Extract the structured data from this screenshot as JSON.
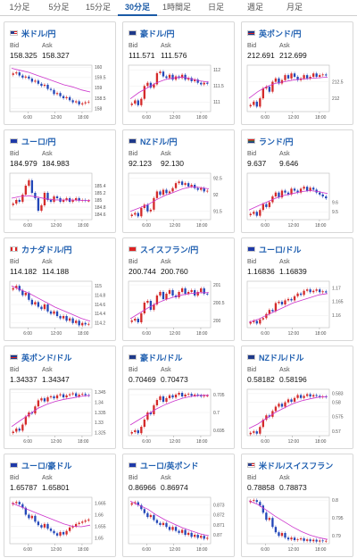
{
  "tabs": [
    {
      "label": "1分足",
      "active": false
    },
    {
      "label": "5分足",
      "active": false
    },
    {
      "label": "15分足",
      "active": false
    },
    {
      "label": "30分足",
      "active": true
    },
    {
      "label": "1時間足",
      "active": false
    },
    {
      "label": "日足",
      "active": false
    },
    {
      "label": "週足",
      "active": false
    },
    {
      "label": "月足",
      "active": false
    }
  ],
  "labels": {
    "bid": "Bid",
    "ask": "Ask"
  },
  "x_ticks": [
    "6:00",
    "12:00",
    "18:00"
  ],
  "colors": {
    "up": "#d42a2a",
    "down": "#2347b8",
    "ma_pink": "#cc33cc",
    "ma_blue": "#1f3aa8",
    "title": "#1f5fb0"
  },
  "cards": [
    {
      "title": "米ドル/円",
      "flag": "us",
      "bid": "158.325",
      "ask": "158.327",
      "chart_data": {
        "type": "candlestick",
        "ylim": [
          157.85,
          160.1
        ],
        "y_ticks": [
          "160",
          "159.5",
          "159",
          "158.5",
          "158"
        ],
        "close": [
          159.7,
          159.75,
          159.6,
          159.5,
          159.55,
          159.45,
          159.3,
          159.35,
          159.2,
          159.1,
          159.15,
          158.95,
          158.9,
          158.7,
          158.75,
          158.6,
          158.5,
          158.55,
          158.4,
          158.3,
          158.35,
          158.2,
          158.25,
          158.3,
          158.33
        ],
        "ma": [
          159.95,
          159.85,
          159.75,
          159.6,
          159.45,
          159.3,
          159.15,
          159.05,
          158.9,
          158.8
        ]
      }
    },
    {
      "title": "豪ドル/円",
      "flag": "au",
      "bid": "111.571",
      "ask": "111.576",
      "chart_data": {
        "type": "candlestick",
        "ylim": [
          110.7,
          112.15
        ],
        "y_ticks": [
          "112",
          "111.5",
          "111"
        ],
        "close": [
          110.95,
          111.05,
          110.9,
          111.1,
          111.5,
          111.6,
          111.45,
          111.55,
          111.9,
          111.95,
          111.8,
          111.75,
          111.85,
          111.7,
          111.8,
          111.75,
          111.85,
          111.7,
          111.75,
          111.65,
          111.7,
          111.6,
          111.55,
          111.6,
          111.57
        ],
        "ma": [
          111.1,
          111.3,
          111.45,
          111.6,
          111.7,
          111.75,
          111.78,
          111.72,
          111.66,
          111.62
        ]
      }
    },
    {
      "title": "英ポンド/円",
      "flag": "gb",
      "bid": "212.691",
      "ask": "212.699",
      "chart_data": {
        "type": "candlestick",
        "ylim": [
          211.6,
          213.0
        ],
        "y_ticks": [
          "212.5",
          "212"
        ],
        "close": [
          211.8,
          211.9,
          211.75,
          212.0,
          212.3,
          212.35,
          212.2,
          212.5,
          212.6,
          212.45,
          212.55,
          212.7,
          212.6,
          212.75,
          212.65,
          212.55,
          212.6,
          212.7,
          212.6,
          212.65,
          212.75,
          212.65,
          212.7,
          212.72,
          212.69
        ],
        "ma": [
          212.0,
          212.2,
          212.35,
          212.45,
          212.5,
          212.55,
          212.58,
          212.6,
          212.62,
          212.64
        ]
      }
    },
    {
      "title": "ユーロ/円",
      "flag": "eu",
      "bid": "184.979",
      "ask": "184.983",
      "chart_data": {
        "type": "candlestick",
        "ylim": [
          184.45,
          185.75
        ],
        "y_ticks": [
          "185.4",
          "185.2",
          "185",
          "184.8",
          "184.6"
        ],
        "close": [
          184.9,
          185.0,
          184.95,
          185.15,
          185.4,
          185.55,
          185.2,
          185.05,
          184.7,
          184.85,
          185.2,
          185.0,
          184.95,
          185.1,
          185.05,
          184.95,
          185.0,
          185.05,
          184.95,
          185.0,
          185.05,
          184.98,
          185.0,
          184.98,
          184.98
        ],
        "ma": [
          185.05,
          185.1,
          185.12,
          185.08,
          185.03,
          185.0,
          185.0,
          185.0,
          184.99,
          184.99
        ]
      }
    },
    {
      "title": "NZドル/円",
      "flag": "nz",
      "bid": "92.123",
      "ask": "92.130",
      "chart_data": {
        "type": "candlestick",
        "ylim": [
          91.25,
          92.65
        ],
        "y_ticks": [
          "92.5",
          "92",
          "91.5"
        ],
        "close": [
          91.4,
          91.45,
          91.35,
          91.6,
          91.7,
          91.5,
          91.55,
          91.9,
          92.1,
          92.0,
          92.15,
          92.05,
          92.1,
          92.2,
          92.35,
          92.4,
          92.3,
          92.35,
          92.25,
          92.3,
          92.2,
          92.15,
          92.2,
          92.1,
          92.12
        ],
        "ma": [
          91.5,
          91.6,
          91.7,
          91.85,
          91.98,
          92.08,
          92.18,
          92.24,
          92.22,
          92.18
        ]
      }
    },
    {
      "title": "ランド/円",
      "flag": "za",
      "bid": "9.637",
      "ask": "9.646",
      "chart_data": {
        "type": "candlestick",
        "ylim": [
          9.42,
          9.9
        ],
        "y_ticks": [
          "9.6",
          "9.5"
        ],
        "close": [
          9.48,
          9.5,
          9.46,
          9.52,
          9.58,
          9.55,
          9.6,
          9.66,
          9.7,
          9.65,
          9.72,
          9.7,
          9.68,
          9.74,
          9.72,
          9.7,
          9.74,
          9.76,
          9.72,
          9.75,
          9.73,
          9.7,
          9.68,
          9.66,
          9.64
        ],
        "ma": [
          9.52,
          9.56,
          9.6,
          9.64,
          9.67,
          9.69,
          9.71,
          9.72,
          9.71,
          9.69
        ]
      }
    },
    {
      "title": "カナダドル/円",
      "flag": "ca",
      "bid": "114.182",
      "ask": "114.188",
      "chart_data": {
        "type": "candlestick",
        "ylim": [
          114.1,
          115.1
        ],
        "y_ticks": [
          "115",
          "114.8",
          "114.6",
          "114.4",
          "114.2"
        ],
        "close": [
          114.95,
          115.0,
          114.9,
          114.8,
          114.85,
          114.7,
          114.6,
          114.65,
          114.55,
          114.5,
          114.6,
          114.45,
          114.4,
          114.45,
          114.35,
          114.3,
          114.35,
          114.25,
          114.3,
          114.2,
          114.25,
          114.15,
          114.2,
          114.17,
          114.18
        ],
        "ma": [
          115.0,
          114.92,
          114.84,
          114.74,
          114.64,
          114.54,
          114.46,
          114.38,
          114.3,
          114.24
        ]
      }
    },
    {
      "title": "スイスフラン/円",
      "flag": "ch",
      "bid": "200.744",
      "ask": "200.760",
      "chart_data": {
        "type": "candlestick",
        "ylim": [
          199.8,
          201.1
        ],
        "y_ticks": [
          "201",
          "200.5",
          "200"
        ],
        "close": [
          200.0,
          200.05,
          199.95,
          200.2,
          200.5,
          200.55,
          200.3,
          200.45,
          200.7,
          200.8,
          200.6,
          200.75,
          200.85,
          200.7,
          200.65,
          200.8,
          200.9,
          200.75,
          200.8,
          200.85,
          200.7,
          200.8,
          200.9,
          200.75,
          200.74
        ],
        "ma": [
          200.05,
          200.2,
          200.35,
          200.48,
          200.58,
          200.66,
          200.72,
          200.76,
          200.78,
          200.78
        ]
      }
    },
    {
      "title": "ユーロ/ドル",
      "flag": "eu",
      "bid": "1.16836",
      "ask": "1.16839",
      "chart_data": {
        "type": "candlestick",
        "ylim": [
          1.1555,
          1.1725
        ],
        "y_ticks": [
          "1.17",
          "1.165",
          "1.16"
        ],
        "close": [
          1.1575,
          1.158,
          1.157,
          1.1585,
          1.159,
          1.1605,
          1.162,
          1.1615,
          1.1645,
          1.165,
          1.164,
          1.1655,
          1.166,
          1.1655,
          1.167,
          1.168,
          1.1675,
          1.169,
          1.1695,
          1.1685,
          1.169,
          1.1695,
          1.1685,
          1.1688,
          1.1684
        ],
        "ma": [
          1.1575,
          1.1585,
          1.16,
          1.1615,
          1.163,
          1.1645,
          1.1655,
          1.1665,
          1.1675,
          1.168
        ]
      }
    },
    {
      "title": "英ポンド/ドル",
      "flag": "gb",
      "bid": "1.34337",
      "ask": "1.34347",
      "chart_data": {
        "type": "candlestick",
        "ylim": [
          1.3235,
          1.3465
        ],
        "y_ticks": [
          "1.345",
          "1.34",
          "1.335",
          "1.33",
          "1.325"
        ],
        "close": [
          1.3255,
          1.327,
          1.326,
          1.329,
          1.333,
          1.335,
          1.3345,
          1.338,
          1.341,
          1.342,
          1.3405,
          1.3425,
          1.343,
          1.342,
          1.3435,
          1.344,
          1.3425,
          1.3435,
          1.344,
          1.3445,
          1.343,
          1.3438,
          1.3442,
          1.3436,
          1.3434
        ],
        "ma": [
          1.328,
          1.331,
          1.334,
          1.337,
          1.339,
          1.3405,
          1.3415,
          1.3422,
          1.343,
          1.3435
        ]
      }
    },
    {
      "title": "豪ドル/ドル",
      "flag": "au",
      "bid": "0.70469",
      "ask": "0.70473",
      "chart_data": {
        "type": "candlestick",
        "ylim": [
          0.6935,
          0.7065
        ],
        "y_ticks": [
          "0.705",
          "0.7",
          "0.695"
        ],
        "close": [
          0.6945,
          0.695,
          0.6942,
          0.696,
          0.698,
          0.7,
          0.6995,
          0.702,
          0.7035,
          0.7045,
          0.703,
          0.704,
          0.7048,
          0.7042,
          0.705,
          0.7055,
          0.7045,
          0.705,
          0.7052,
          0.7047,
          0.705,
          0.7048,
          0.7045,
          0.7047,
          0.7047
        ],
        "ma": [
          0.6965,
          0.698,
          0.6995,
          0.701,
          0.7022,
          0.7032,
          0.704,
          0.7045,
          0.7048,
          0.7048
        ]
      }
    },
    {
      "title": "NZドル/ドル",
      "flag": "nz",
      "bid": "0.58182",
      "ask": "0.58196",
      "chart_data": {
        "type": "candlestick",
        "ylim": [
          0.5685,
          0.5845
        ],
        "y_ticks": [
          "0.583",
          "0.58",
          "0.575",
          "0.57"
        ],
        "close": [
          0.5695,
          0.57,
          0.5692,
          0.5715,
          0.574,
          0.5755,
          0.575,
          0.577,
          0.5785,
          0.5795,
          0.5785,
          0.58,
          0.581,
          0.5802,
          0.5815,
          0.5825,
          0.5815,
          0.5822,
          0.5828,
          0.582,
          0.5825,
          0.5822,
          0.5818,
          0.582,
          0.5818
        ],
        "ma": [
          0.571,
          0.5725,
          0.5745,
          0.5765,
          0.578,
          0.5795,
          0.5805,
          0.5812,
          0.5818,
          0.582
        ]
      }
    },
    {
      "title": "ユーロ/豪ドル",
      "flag": "eu",
      "bid": "1.65787",
      "ask": "1.65801",
      "chart_data": {
        "type": "candlestick",
        "ylim": [
          1.6475,
          1.6675
        ],
        "y_ticks": [
          "1.665",
          "1.66",
          "1.655",
          "1.65"
        ],
        "close": [
          1.665,
          1.6655,
          1.6645,
          1.663,
          1.66,
          1.6585,
          1.6595,
          1.657,
          1.6555,
          1.6545,
          1.656,
          1.654,
          1.653,
          1.652,
          1.651,
          1.6525,
          1.6515,
          1.653,
          1.6545,
          1.655,
          1.656,
          1.6565,
          1.657,
          1.6575,
          1.6579
        ],
        "ma": [
          1.665,
          1.6635,
          1.662,
          1.6605,
          1.659,
          1.6575,
          1.656,
          1.655,
          1.6548,
          1.6555
        ]
      }
    },
    {
      "title": "ユーロ/英ポンド",
      "flag": "eu",
      "bid": "0.86966",
      "ask": "0.86974",
      "chart_data": {
        "type": "candlestick",
        "ylim": [
          0.8691,
          0.8738
        ],
        "y_ticks": [
          "0.873",
          "0.872",
          "0.871",
          "0.87"
        ],
        "close": [
          0.8732,
          0.8733,
          0.873,
          0.8726,
          0.8722,
          0.8718,
          0.872,
          0.8715,
          0.8712,
          0.871,
          0.8712,
          0.8708,
          0.8705,
          0.8708,
          0.8704,
          0.8702,
          0.8705,
          0.87,
          0.8702,
          0.8698,
          0.87,
          0.8697,
          0.8699,
          0.8696,
          0.8697
        ],
        "ma": [
          0.8734,
          0.873,
          0.8726,
          0.872,
          0.8715,
          0.8711,
          0.8707,
          0.8704,
          0.8701,
          0.8699
        ]
      }
    },
    {
      "title": "米ドル/スイスフラン",
      "flag": "us",
      "bid": "0.78858",
      "ask": "0.78873",
      "chart_data": {
        "type": "candlestick",
        "ylim": [
          0.7878,
          0.8008
        ],
        "y_ticks": [
          "0.8",
          "0.795",
          "0.79"
        ],
        "close": [
          0.7998,
          0.8,
          0.7995,
          0.7985,
          0.7965,
          0.7945,
          0.795,
          0.7925,
          0.791,
          0.79,
          0.7908,
          0.7895,
          0.789,
          0.7895,
          0.7888,
          0.789,
          0.7893,
          0.7886,
          0.789,
          0.7885,
          0.7889,
          0.7884,
          0.7887,
          0.7885,
          0.7886
        ],
        "ma": [
          0.7998,
          0.7988,
          0.7972,
          0.7955,
          0.794,
          0.7925,
          0.7912,
          0.7902,
          0.7895,
          0.789
        ]
      }
    }
  ]
}
